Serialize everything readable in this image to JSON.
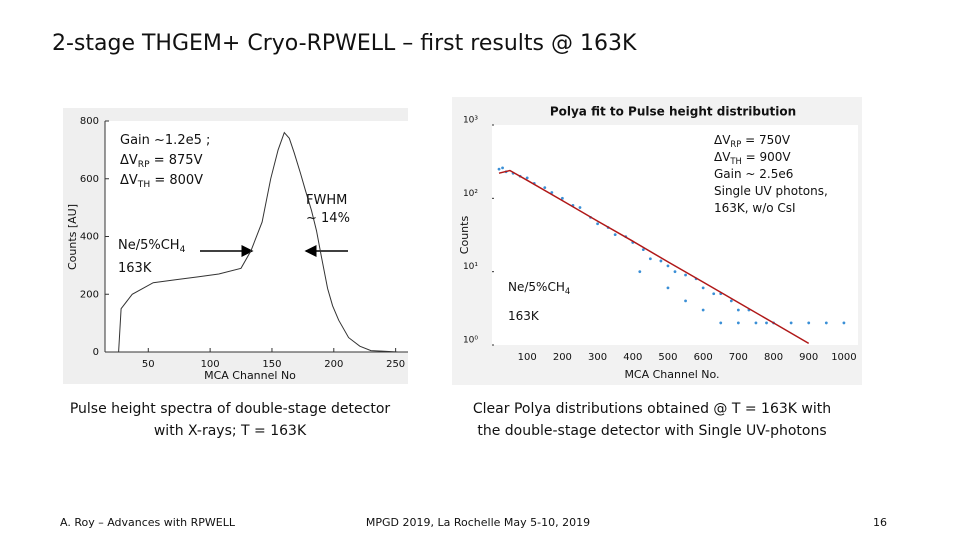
{
  "title": "2-stage THGEM+ Cryo-RPWELL  – first results @ 163K",
  "chart_data": [
    {
      "type": "line",
      "x_label": "MCA Channel No",
      "y_label": "Counts [AU]",
      "color": "#333333",
      "x": [
        26,
        28,
        37,
        54,
        72,
        90,
        107,
        125,
        133,
        142,
        149,
        155,
        160,
        164,
        168,
        173,
        177,
        182,
        186,
        190,
        195,
        199,
        204,
        212,
        221,
        230,
        239,
        252
      ],
      "values": [
        0,
        150,
        200,
        240,
        250,
        260,
        270,
        290,
        350,
        450,
        600,
        700,
        760,
        740,
        690,
        620,
        560,
        490,
        420,
        330,
        220,
        160,
        110,
        50,
        20,
        5,
        3,
        0
      ],
      "xlim": [
        15,
        260
      ],
      "ylim": [
        0,
        800
      ],
      "xticks": [
        50,
        100,
        150,
        200,
        250
      ],
      "yticks": [
        0,
        200,
        400,
        600,
        800
      ],
      "annotations": [
        {
          "lines": [
            {
              "text": "Gain ~1.2e5 ;"
            },
            {
              "text": "ΔV",
              "sub": "RP",
              "after": " = 875V"
            },
            {
              "text": "ΔV",
              "sub": "TH",
              "after": " = 800V"
            }
          ]
        },
        {
          "lines": [
            {
              "text": "FWHM"
            },
            {
              "text": "~ 14%"
            }
          ]
        },
        {
          "lines": [
            {
              "text": "Ne/5%CH",
              "sub": "4"
            },
            {
              "text": "163K"
            }
          ]
        }
      ],
      "caption": [
        "Pulse height spectra of double-stage detector",
        "with X-rays;  T = 163K"
      ]
    },
    {
      "type": "scatter",
      "title": "Polya fit to Pulse height distribution",
      "x_label": "MCA Channel No.",
      "y_label": "Counts",
      "color": "#3a8fd6",
      "log_y": true,
      "x": [
        20,
        30,
        40,
        60,
        80,
        100,
        120,
        150,
        170,
        200,
        230,
        250,
        280,
        300,
        330,
        350,
        380,
        400,
        430,
        450,
        480,
        500,
        520,
        550,
        580,
        600,
        630,
        650,
        680,
        700,
        730,
        750,
        780,
        800,
        850,
        900,
        950,
        1000,
        420,
        500,
        600,
        650,
        700,
        550
      ],
      "values": [
        250,
        260,
        230,
        220,
        200,
        190,
        160,
        140,
        120,
        100,
        80,
        75,
        55,
        45,
        40,
        32,
        30,
        25,
        20,
        15,
        14,
        12,
        10,
        9,
        8,
        6,
        5,
        5,
        4,
        3,
        3,
        2,
        2,
        2,
        2,
        2,
        2,
        2,
        10,
        6,
        3,
        2,
        2,
        4
      ],
      "fit": {
        "color": "#b01818",
        "x": [
          20,
          51,
          100,
          200,
          300,
          400,
          500,
          600,
          700,
          800,
          900
        ],
        "values": [
          220,
          240,
          176,
          93,
          49,
          26,
          13.6,
          7.2,
          3.8,
          2.0,
          1.05
        ]
      },
      "xlim": [
        0,
        1040
      ],
      "ylim": [
        1,
        1000
      ],
      "xticks": [
        100,
        200,
        300,
        400,
        500,
        600,
        700,
        800,
        900,
        1000
      ],
      "yticks": [
        {
          "value": 1,
          "label": "10⁰"
        },
        {
          "value": 10,
          "label": "10¹"
        },
        {
          "value": 100,
          "label": "10²"
        },
        {
          "value": 1000,
          "label": "10³"
        }
      ],
      "annotations": [
        {
          "lines": [
            {
              "text": "ΔV",
              "sub": "RP",
              "after": " = 750V"
            },
            {
              "text": "ΔV",
              "sub": "TH",
              "after": " = 900V"
            },
            {
              "text": "Gain ~ 2.5e6"
            },
            {
              "text": "Single UV photons,"
            },
            {
              "text": "163K, w/o CsI"
            }
          ]
        },
        {
          "lines": [
            {
              "text": "Ne/5%CH",
              "sub": "4"
            },
            {
              "text": "163K"
            }
          ]
        }
      ],
      "caption": [
        "Clear Polya distributions obtained @ T = 163K with",
        "the double-stage detector with Single UV-photons"
      ]
    }
  ],
  "footer": {
    "left": "A. Roy – Advances with RPWELL",
    "center": "MPGD 2019, La Rochelle May 5-10, 2019",
    "page": "16"
  }
}
